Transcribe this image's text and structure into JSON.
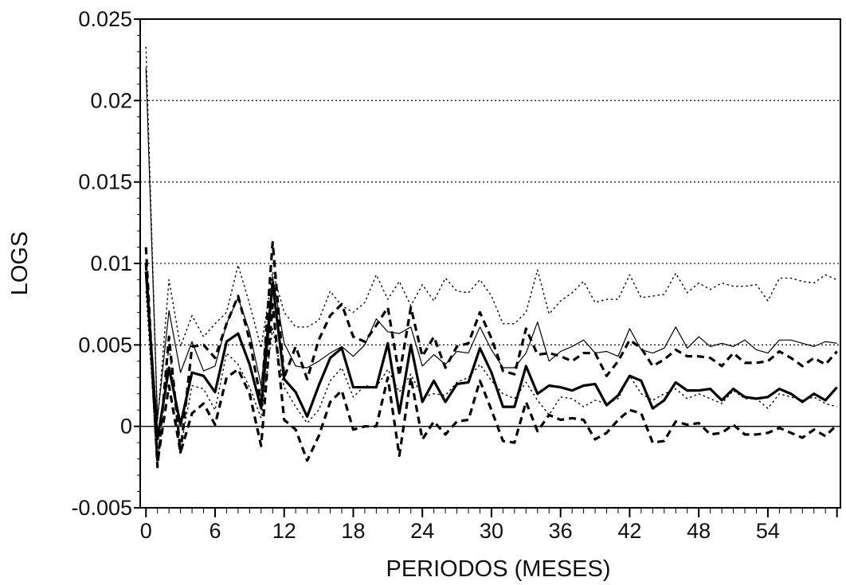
{
  "chart_data": {
    "type": "line",
    "xlabel": "PERIODOS (MESES)",
    "ylabel": "LOGS",
    "xlim": [
      -0.5,
      60.3
    ],
    "ylim": [
      -0.005,
      0.025
    ],
    "x_ticks": [
      0,
      6,
      12,
      18,
      24,
      30,
      36,
      42,
      48,
      54
    ],
    "x_tick_labels": [
      "0",
      "6",
      "12",
      "18",
      "24",
      "30",
      "36",
      "42",
      "48",
      "54"
    ],
    "y_ticks": [
      -0.005,
      0,
      0.005,
      0.01,
      0.015,
      0.02,
      0.025
    ],
    "y_tick_labels": [
      "-0.005",
      "0",
      "0.005",
      "0.01",
      "0.015",
      "0.02",
      "0.025"
    ],
    "grid": "horizontal dotted",
    "zero_line": true,
    "legend": "none",
    "x": [
      0,
      1,
      2,
      3,
      4,
      5,
      6,
      7,
      8,
      9,
      10,
      11,
      12,
      13,
      14,
      15,
      16,
      17,
      18,
      19,
      20,
      21,
      22,
      23,
      24,
      25,
      26,
      27,
      28,
      29,
      30,
      31,
      32,
      33,
      34,
      35,
      36,
      37,
      38,
      39,
      40,
      41,
      42,
      43,
      44,
      45,
      46,
      47,
      48,
      49,
      50,
      51,
      52,
      53,
      54,
      55,
      56,
      57,
      58,
      59,
      60
    ],
    "series": [
      {
        "style": "thick-solid",
        "values": [
          0.0095,
          -0.0008,
          0.0036,
          0.0001,
          0.0033,
          0.0031,
          0.0021,
          0.0052,
          0.0057,
          0.0038,
          0.0011,
          0.0088,
          0.0029,
          0.0021,
          0.0006,
          0.0025,
          0.0042,
          0.0048,
          0.0024,
          0.0024,
          0.0024,
          0.0051,
          0.0008,
          0.005,
          0.0015,
          0.0028,
          0.0015,
          0.0026,
          0.0027,
          0.0048,
          0.0033,
          0.0012,
          0.0012,
          0.0037,
          0.002,
          0.0025,
          0.0024,
          0.0022,
          0.0025,
          0.0026,
          0.0013,
          0.0019,
          0.0031,
          0.0028,
          0.0011,
          0.0016,
          0.0027,
          0.0022,
          0.0022,
          0.0023,
          0.0016,
          0.0023,
          0.0018,
          0.0017,
          0.0018,
          0.0023,
          0.002,
          0.0015,
          0.002,
          0.0016,
          0.0024
        ]
      },
      {
        "style": "thin-solid",
        "values": [
          0.022,
          0.0005,
          0.0071,
          0.0033,
          0.0052,
          0.0034,
          0.0037,
          0.0063,
          0.0079,
          0.0058,
          0.0025,
          0.0092,
          0.0051,
          0.0037,
          0.0036,
          0.004,
          0.0045,
          0.0049,
          0.0043,
          0.005,
          0.0066,
          0.0058,
          0.0057,
          0.0061,
          0.0037,
          0.0044,
          0.0038,
          0.0046,
          0.0045,
          0.0061,
          0.0047,
          0.0036,
          0.0036,
          0.0045,
          0.0064,
          0.004,
          0.0046,
          0.0049,
          0.0053,
          0.0045,
          0.0046,
          0.0043,
          0.006,
          0.0047,
          0.0045,
          0.0048,
          0.0061,
          0.0048,
          0.0055,
          0.0049,
          0.0051,
          0.0049,
          0.0053,
          0.0047,
          0.0045,
          0.0053,
          0.0053,
          0.0051,
          0.0049,
          0.0052,
          0.0051
        ]
      },
      {
        "style": "thin-dotted",
        "values": [
          0.0233,
          0.0003,
          0.009,
          0.0049,
          0.0068,
          0.0055,
          0.0063,
          0.007,
          0.0099,
          0.0075,
          0.0048,
          0.0095,
          0.007,
          0.0061,
          0.0061,
          0.0065,
          0.0083,
          0.0074,
          0.007,
          0.0076,
          0.0093,
          0.0078,
          0.0089,
          0.0074,
          0.0087,
          0.0077,
          0.0091,
          0.0083,
          0.0082,
          0.009,
          0.008,
          0.0063,
          0.0063,
          0.007,
          0.0096,
          0.0069,
          0.0077,
          0.0082,
          0.0089,
          0.0076,
          0.0078,
          0.0078,
          0.0093,
          0.0079,
          0.008,
          0.0081,
          0.0094,
          0.0082,
          0.0088,
          0.0084,
          0.0088,
          0.0086,
          0.0086,
          0.0087,
          0.0077,
          0.0091,
          0.0091,
          0.0089,
          0.0088,
          0.0093,
          0.009
        ]
      },
      {
        "style": "thin-dotted",
        "values": [
          0.0083,
          -0.0023,
          0.005,
          -0.0013,
          0.0025,
          0.0023,
          0.001,
          0.0045,
          0.0038,
          0.0024,
          0.0005,
          0.006,
          0.0024,
          0.0012,
          0.0002,
          0.001,
          0.0028,
          0.0036,
          0.0018,
          0.0025,
          0.0024,
          0.0035,
          0.0021,
          0.0032,
          0.0018,
          0.002,
          0.0019,
          0.0027,
          0.003,
          0.0038,
          0.0028,
          0.002,
          0.0017,
          0.0027,
          0.0016,
          0.0007,
          0.0018,
          0.0017,
          0.0012,
          0.0016,
          0.0014,
          0.0017,
          0.0031,
          0.002,
          0.0016,
          0.002,
          0.0023,
          0.0017,
          0.002,
          0.0017,
          0.0014,
          0.0022,
          0.0017,
          0.0017,
          0.0011,
          0.002,
          0.0018,
          0.0016,
          0.0018,
          0.0014,
          0.0012
        ]
      },
      {
        "style": "thick-dashed",
        "values": [
          0.011,
          -0.0025,
          0.0055,
          -0.0016,
          0.0049,
          0.005,
          0.0042,
          0.0063,
          0.008,
          0.0053,
          0.0015,
          0.0113,
          0.003,
          0.0049,
          0.0029,
          0.0053,
          0.0068,
          0.0075,
          0.0055,
          0.0052,
          0.0062,
          0.0073,
          0.0031,
          0.0073,
          0.0043,
          0.0055,
          0.0036,
          0.0049,
          0.0051,
          0.007,
          0.0054,
          0.0034,
          0.0032,
          0.006,
          0.0044,
          0.0045,
          0.0043,
          0.004,
          0.0045,
          0.0045,
          0.0031,
          0.004,
          0.0053,
          0.0048,
          0.0037,
          0.0041,
          0.0047,
          0.0043,
          0.0043,
          0.0042,
          0.0037,
          0.0045,
          0.0039,
          0.0039,
          0.004,
          0.0046,
          0.0042,
          0.0037,
          0.0042,
          0.0038,
          0.0046
        ]
      },
      {
        "style": "thick-dashed",
        "values": [
          0.01,
          -0.0022,
          0.0025,
          -0.0016,
          0.0008,
          0.0014,
          0.0001,
          0.003,
          0.0035,
          0.002,
          -0.0012,
          0.0075,
          0.0004,
          -0.0002,
          -0.0021,
          -0.0006,
          0.0015,
          0.0022,
          -0.0002,
          0.0,
          0.0,
          0.003,
          -0.0018,
          0.003,
          -0.0008,
          0.0003,
          -0.0005,
          0.0003,
          0.0004,
          0.0028,
          0.001,
          -0.0009,
          -0.001,
          0.0015,
          -0.0003,
          0.0007,
          0.0004,
          0.0005,
          0.0004,
          -0.0008,
          -0.0004,
          0.0004,
          0.001,
          0.0008,
          -0.001,
          -0.0009,
          0.0003,
          0.0001,
          0.0002,
          -0.0005,
          -0.0004,
          0.0001,
          -0.0005,
          -0.0005,
          -0.0004,
          -0.0001,
          -0.0004,
          -0.0007,
          -0.0002,
          -0.0006,
          0.0001
        ]
      }
    ]
  }
}
